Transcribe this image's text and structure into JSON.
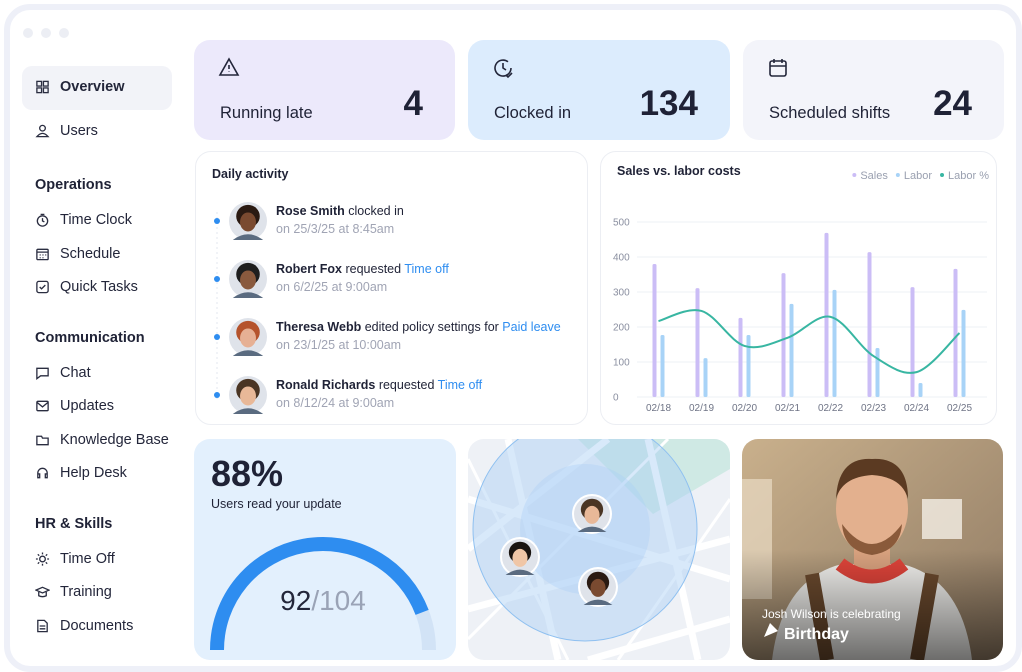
{
  "sidebar": {
    "top": [
      {
        "label": "Overview",
        "active": true
      },
      {
        "label": "Users"
      }
    ],
    "sections": [
      {
        "title": "Operations",
        "items": [
          "Time Clock",
          "Schedule",
          "Quick Tasks"
        ]
      },
      {
        "title": "Communication",
        "items": [
          "Chat",
          "Updates",
          "Knowledge Base",
          "Help Desk"
        ]
      },
      {
        "title": "HR & Skills",
        "items": [
          "Time Off",
          "Training",
          "Documents"
        ]
      }
    ]
  },
  "stats": [
    {
      "label": "Running late",
      "value": 4
    },
    {
      "label": "Clocked in",
      "value": 134
    },
    {
      "label": "Scheduled shifts",
      "value": 24
    }
  ],
  "activity": {
    "title": "Daily activity",
    "items": [
      {
        "name": "Rose Smith",
        "action": "clocked in",
        "time": "on 25/3/25 at 8:45am"
      },
      {
        "name": "Robert Fox",
        "action": "requested",
        "link": "Time off",
        "time": "on 6/2/25 at 9:00am"
      },
      {
        "name": "Theresa Webb",
        "action": "edited policy settings for",
        "link": "Paid leave",
        "time": "on 23/1/25 at 10:00am"
      },
      {
        "name": "Ronald Richards",
        "action": "requested",
        "link": "Time off",
        "time": "on 8/12/24 at 9:00am"
      }
    ]
  },
  "chart_data": {
    "type": "bar",
    "title": "Sales vs. labor costs",
    "categories": [
      "02/18",
      "02/19",
      "02/20",
      "02/21",
      "02/22",
      "02/23",
      "02/24",
      "02/25"
    ],
    "series": [
      {
        "name": "Sales",
        "color": "#cbbdf6",
        "values": [
          380,
          311,
          226,
          354,
          469,
          414,
          314,
          366
        ]
      },
      {
        "name": "Labor",
        "color": "#a8d3f7",
        "values": [
          177,
          111,
          177,
          266,
          306,
          140,
          40,
          249
        ]
      },
      {
        "name": "Labor %",
        "color": "#38b6a2",
        "type": "line",
        "values": [
          217,
          246,
          146,
          169,
          229,
          117,
          71,
          183
        ]
      }
    ],
    "ylim": [
      0,
      500
    ],
    "yticks": [
      0,
      100,
      200,
      300,
      400,
      500
    ],
    "grid": true,
    "legend": "top-right"
  },
  "update": {
    "percent": "88%",
    "caption": "Users read your update",
    "read": 92,
    "separator": "/",
    "total": 104
  },
  "birthday": {
    "text": "Josh Wilson is celebrating",
    "title": "Birthday"
  }
}
